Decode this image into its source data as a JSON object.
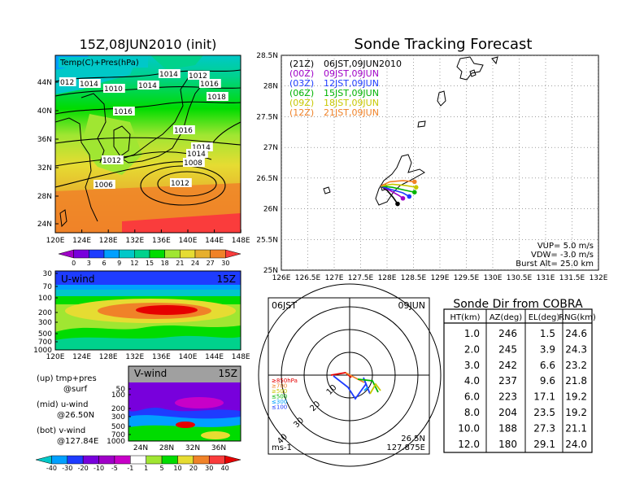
{
  "left_map": {
    "title": "15Z,08JUN2010 (init)",
    "label": "Temp(C)+Pres(hPa)",
    "lat_labels": [
      "44N",
      "40N",
      "36N",
      "32N",
      "28N",
      "24N"
    ],
    "lon_labels": [
      "120E",
      "124E",
      "128E",
      "132E",
      "136E",
      "140E",
      "144E",
      "148E"
    ],
    "isobar_labels": [
      "012",
      "1014",
      "1010",
      "1014",
      "1014",
      "1012",
      "1016",
      "1018",
      "1016",
      "1016",
      "1014",
      "1014",
      "1012",
      "1008",
      "1006",
      "1012"
    ],
    "colorbar_labels": [
      "0",
      "3",
      "6",
      "9",
      "12",
      "15",
      "18",
      "21",
      "24",
      "27",
      "30"
    ],
    "colors": [
      "#a000c8",
      "#7800dc",
      "#1e3cff",
      "#00a0ff",
      "#00c8c8",
      "#00d28c",
      "#00dc00",
      "#a0e632",
      "#e6dc32",
      "#e6af2d",
      "#f08228",
      "#fa3c3c"
    ]
  },
  "u_wind": {
    "label": "U-wind",
    "time": "15Z",
    "pressure_labels": [
      "30",
      "70",
      "100",
      "200",
      "300",
      "500",
      "700",
      "1000"
    ],
    "lon_labels": [
      "120E",
      "124E",
      "128E",
      "132E",
      "136E",
      "140E",
      "144E",
      "148E"
    ]
  },
  "v_wind": {
    "label": "V-wind",
    "time": "15Z",
    "pressure_labels": [
      "50",
      "100",
      "200",
      "300",
      "500",
      "700",
      "1000"
    ],
    "lat_labels": [
      "24N",
      "28N",
      "32N",
      "36N"
    ]
  },
  "legend_text": {
    "up_label": "(up) tmp+pres",
    "up_sub": "@surf",
    "mid_label": "(mid) u-wind",
    "mid_sub": "@26.50N",
    "bot_label": "(bot) v-wind",
    "bot_sub": "@127.84E"
  },
  "wind_colorbar_labels": [
    "-40",
    "-30",
    "-20",
    "-10",
    "-5",
    "-1",
    "1",
    "5",
    "10",
    "20",
    "30",
    "40"
  ],
  "tracking": {
    "title": "Sonde Tracking Forecast",
    "lat_labels": [
      "28.5N",
      "28N",
      "27.5N",
      "27N",
      "26.5N",
      "26N",
      "25.5N",
      "25N"
    ],
    "lon_labels": [
      "126E",
      "126.5E",
      "127E",
      "127.5E",
      "128E",
      "128.5E",
      "129E",
      "129.5E",
      "130E",
      "130.5E",
      "131E",
      "131.5E",
      "132E"
    ],
    "legend": [
      {
        "code": "(21Z)",
        "time": "06JST,09JUN2010",
        "color": "#000000"
      },
      {
        "code": "(00Z)",
        "time": "09JST,09JUN",
        "color": "#a000c8"
      },
      {
        "code": "(03Z)",
        "time": "12JST,09JUN",
        "color": "#1e3cff"
      },
      {
        "code": "(06Z)",
        "time": "15JST,09JUN",
        "color": "#00b400"
      },
      {
        "code": "(09Z)",
        "time": "18JST,09JUN",
        "color": "#c8c800"
      },
      {
        "code": "(12Z)",
        "time": "21JST,09JUN",
        "color": "#f08228"
      }
    ],
    "vup": "VUP=  5.0  m/s",
    "vdw": "VDW= -3.0  m/s",
    "burst": "Burst Alt= 25.0  km"
  },
  "polar": {
    "time_label": "06JST",
    "date_label": "09JUN",
    "ring_labels": [
      "10",
      "20",
      "30",
      "40"
    ],
    "height_labels": [
      {
        "text": "≥850hPa",
        "color": "#e60000"
      },
      {
        "text": "≥700",
        "color": "#f08228"
      },
      {
        "text": "≥500",
        "color": "#c8c800"
      },
      {
        "text": "≤500",
        "color": "#00b400"
      },
      {
        "text": "≤300",
        "color": "#00a0ff"
      },
      {
        "text": "≤100",
        "color": "#1e3cff"
      }
    ],
    "loc_lat": "26.5N",
    "loc_lon": "127.875E",
    "unit": "ms-1"
  },
  "table": {
    "title": "Sonde Dir from COBRA",
    "headers": [
      "HT(km)",
      "AZ(deg)",
      "EL(deg)",
      "RNG(km)"
    ],
    "rows": [
      [
        "1.0",
        "246",
        "1.5",
        "24.6"
      ],
      [
        "2.0",
        "245",
        "3.9",
        "24.3"
      ],
      [
        "3.0",
        "242",
        "6.6",
        "23.2"
      ],
      [
        "4.0",
        "237",
        "9.6",
        "21.8"
      ],
      [
        "6.0",
        "223",
        "17.1",
        "19.2"
      ],
      [
        "8.0",
        "204",
        "23.5",
        "19.2"
      ],
      [
        "10.0",
        "188",
        "27.3",
        "21.1"
      ],
      [
        "12.0",
        "180",
        "29.1",
        "24.0"
      ]
    ]
  },
  "chart_data": [
    {
      "type": "heatmap",
      "title": "15Z,08JUN2010 (init)",
      "label": "Temp(C)+Pres(hPa)",
      "xlim": [
        120,
        150
      ],
      "ylim": [
        22,
        48
      ],
      "color_levels": [
        0,
        3,
        6,
        9,
        12,
        15,
        18,
        21,
        24,
        27,
        30
      ],
      "isobars": [
        1006,
        1008,
        1010,
        1012,
        1014,
        1016,
        1018
      ]
    },
    {
      "type": "heatmap",
      "label": "U-wind",
      "time": "15Z",
      "xlim": [
        120,
        150
      ],
      "ylim_hpa": [
        1000,
        30
      ]
    },
    {
      "type": "heatmap",
      "label": "V-wind",
      "time": "15Z",
      "xlim": [
        22,
        39
      ],
      "ylim_hpa": [
        1000,
        30
      ],
      "color_levels": [
        -40,
        -30,
        -20,
        -10,
        -5,
        -1,
        1,
        5,
        10,
        20,
        30,
        40
      ]
    },
    {
      "type": "line",
      "title": "Sonde Tracking Forecast",
      "xlim": [
        126,
        132
      ],
      "ylim": [
        25,
        28.5
      ],
      "series": [
        {
          "name": "(21Z) 06JST,09JUN2010",
          "points": [
            [
              127.88,
              26.37
            ],
            [
              128.0,
              26.3
            ],
            [
              128.12,
              26.18
            ],
            [
              128.2,
              26.08
            ]
          ]
        },
        {
          "name": "(00Z) 09JST,09JUN",
          "points": [
            [
              127.88,
              26.37
            ],
            [
              128.05,
              26.3
            ],
            [
              128.22,
              26.22
            ],
            [
              128.3,
              26.17
            ]
          ]
        },
        {
          "name": "(03Z) 12JST,09JUN",
          "points": [
            [
              127.88,
              26.37
            ],
            [
              128.05,
              26.32
            ],
            [
              128.3,
              26.26
            ],
            [
              128.42,
              26.2
            ]
          ]
        },
        {
          "name": "(06Z) 15JST,09JUN",
          "points": [
            [
              127.88,
              26.37
            ],
            [
              128.1,
              26.35
            ],
            [
              128.35,
              26.3
            ],
            [
              128.52,
              26.27
            ]
          ]
        },
        {
          "name": "(09Z) 18JST,09JUN",
          "points": [
            [
              127.88,
              26.37
            ],
            [
              128.1,
              26.4
            ],
            [
              128.35,
              26.38
            ],
            [
              128.55,
              26.35
            ]
          ]
        },
        {
          "name": "(12Z) 21JST,09JUN",
          "points": [
            [
              127.88,
              26.37
            ],
            [
              128.05,
              26.44
            ],
            [
              128.3,
              26.46
            ],
            [
              128.52,
              26.44
            ]
          ]
        }
      ]
    },
    {
      "type": "table",
      "title": "Sonde Dir from COBRA",
      "columns": [
        "HT(km)",
        "AZ(deg)",
        "EL(deg)",
        "RNG(km)"
      ],
      "rows": [
        [
          1.0,
          246,
          1.5,
          24.6
        ],
        [
          2.0,
          245,
          3.9,
          24.3
        ],
        [
          3.0,
          242,
          6.6,
          23.2
        ],
        [
          4.0,
          237,
          9.6,
          21.8
        ],
        [
          6.0,
          223,
          17.1,
          19.2
        ],
        [
          8.0,
          204,
          23.5,
          19.2
        ],
        [
          10.0,
          188,
          27.3,
          21.1
        ],
        [
          12.0,
          180,
          29.1,
          24.0
        ]
      ]
    }
  ]
}
